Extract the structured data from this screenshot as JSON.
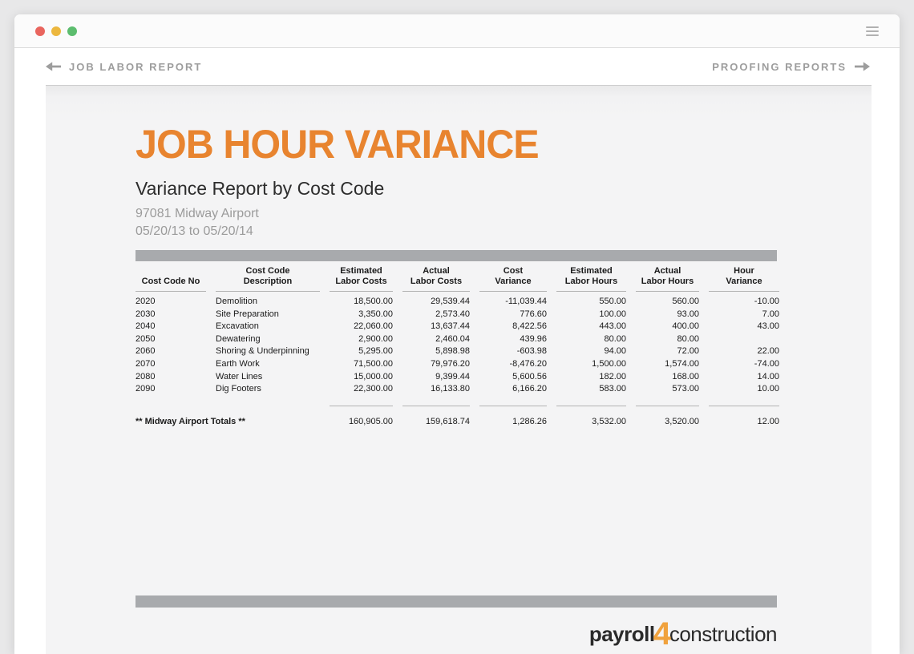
{
  "titlebar": {
    "traffic_lights": [
      {
        "name": "close",
        "color": "#e9655e"
      },
      {
        "name": "minimize",
        "color": "#ecb73e"
      },
      {
        "name": "zoom",
        "color": "#5cbd6e"
      }
    ]
  },
  "navbar": {
    "back_label": "JOB LABOR REPORT",
    "forward_label": "PROOFING REPORTS"
  },
  "report": {
    "title": "JOB HOUR VARIANCE",
    "subtitle": "Variance Report by Cost Code",
    "job_name": "97081 Midway Airport",
    "date_range": "05/20/13 to 05/20/14",
    "accent_color": "#e8842f",
    "bar_color": "#a8aaad",
    "logo": {
      "part1": "payroll",
      "part2": "4",
      "part3": "construction"
    }
  },
  "chart_data": {
    "type": "table",
    "title": "Job Hour Variance — Variance Report by Cost Code",
    "columns": [
      {
        "lines": [
          "Cost Code No"
        ]
      },
      {
        "lines": [
          "Cost Code",
          "Description"
        ]
      },
      {
        "lines": [
          "Estimated",
          "Labor Costs"
        ]
      },
      {
        "lines": [
          "Actual",
          "Labor Costs"
        ]
      },
      {
        "lines": [
          "Cost",
          "Variance"
        ]
      },
      {
        "lines": [
          "Estimated",
          "Labor Hours"
        ]
      },
      {
        "lines": [
          "Actual",
          "Labor Hours"
        ]
      },
      {
        "lines": [
          "Hour",
          "Variance"
        ]
      }
    ],
    "rows": [
      [
        "2020",
        "Demolition",
        "18,500.00",
        "29,539.44",
        "-11,039.44",
        "550.00",
        "560.00",
        "-10.00"
      ],
      [
        "2030",
        "Site Preparation",
        "3,350.00",
        "2,573.40",
        "776.60",
        "100.00",
        "93.00",
        "7.00"
      ],
      [
        "2040",
        "Excavation",
        "22,060.00",
        "13,637.44",
        "8,422.56",
        "443.00",
        "400.00",
        "43.00"
      ],
      [
        "2050",
        "Dewatering",
        "2,900.00",
        "2,460.04",
        "439.96",
        "80.00",
        "80.00",
        ""
      ],
      [
        "2060",
        "Shoring & Underpinning",
        "5,295.00",
        "5,898.98",
        "-603.98",
        "94.00",
        "72.00",
        "22.00"
      ],
      [
        "2070",
        "Earth Work",
        "71,500.00",
        "79,976.20",
        "-8,476.20",
        "1,500.00",
        "1,574.00",
        "-74.00"
      ],
      [
        "2080",
        "Water Lines",
        "15,000.00",
        "9,399.44",
        "5,600.56",
        "182.00",
        "168.00",
        "14.00"
      ],
      [
        "2090",
        "Dig Footers",
        "22,300.00",
        "16,133.80",
        "6,166.20",
        "583.00",
        "573.00",
        "10.00"
      ]
    ],
    "totals": {
      "label": "** Midway Airport Totals **",
      "values": [
        "160,905.00",
        "159,618.74",
        "1,286.26",
        "3,532.00",
        "3,520.00",
        "12.00"
      ]
    }
  }
}
